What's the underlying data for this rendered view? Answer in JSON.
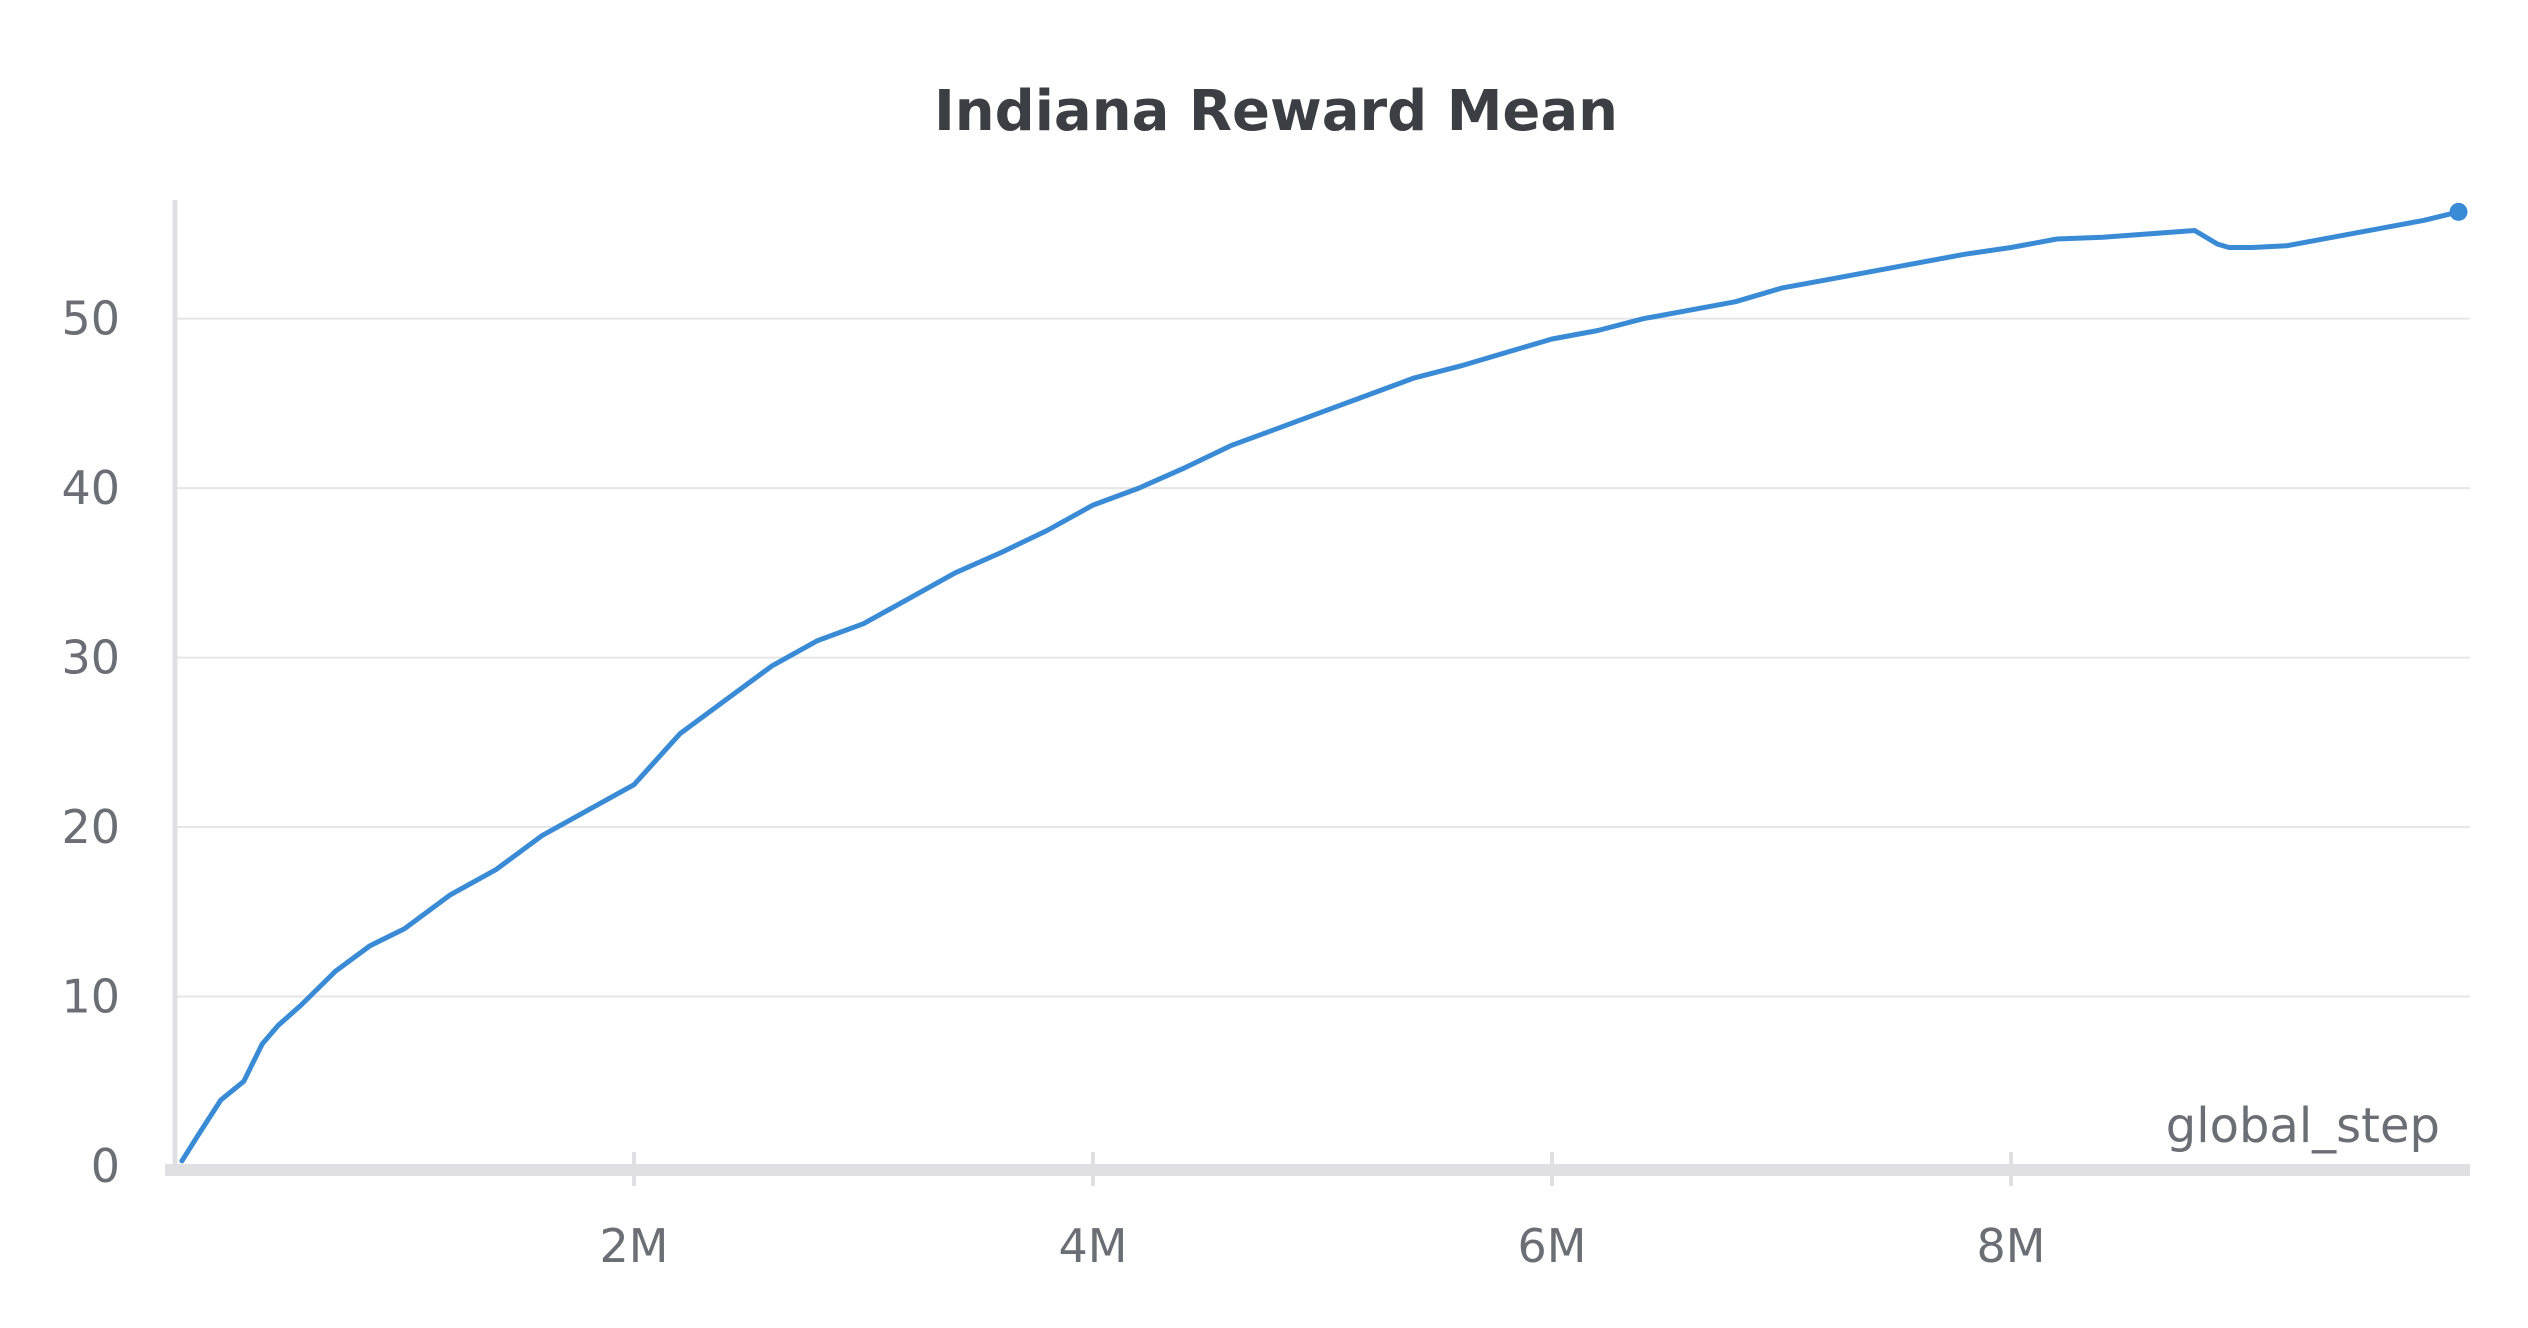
{
  "chart_data": {
    "type": "line",
    "title": "Indiana Reward Mean",
    "xlabel": "global_step",
    "ylabel": "",
    "xlim": [
      0,
      10000000
    ],
    "ylim": [
      0,
      57
    ],
    "x_ticks": [
      {
        "value": 2000000,
        "label": "2M"
      },
      {
        "value": 4000000,
        "label": "4M"
      },
      {
        "value": 6000000,
        "label": "6M"
      },
      {
        "value": 8000000,
        "label": "8M"
      }
    ],
    "y_ticks": [
      {
        "value": 0,
        "label": "0"
      },
      {
        "value": 10,
        "label": "10"
      },
      {
        "value": 20,
        "label": "20"
      },
      {
        "value": 30,
        "label": "30"
      },
      {
        "value": 40,
        "label": "40"
      },
      {
        "value": 50,
        "label": "50"
      }
    ],
    "grid": true,
    "legend": "none",
    "colors": {
      "line": "#3a8bd6",
      "grid": "#e6e6e6",
      "axis": "#e0e0e2"
    },
    "series": [
      {
        "name": "",
        "x": [
          30000,
          100000,
          200000,
          300000,
          380000,
          450000,
          550000,
          700000,
          850000,
          1000000,
          1200000,
          1400000,
          1600000,
          1800000,
          2000000,
          2200000,
          2400000,
          2600000,
          2800000,
          3000000,
          3200000,
          3400000,
          3600000,
          3800000,
          4000000,
          4200000,
          4400000,
          4600000,
          4800000,
          5000000,
          5200000,
          5400000,
          5600000,
          5800000,
          6000000,
          6200000,
          6400000,
          6600000,
          6800000,
          7000000,
          7200000,
          7400000,
          7600000,
          7800000,
          8000000,
          8200000,
          8400000,
          8600000,
          8800000,
          8900000,
          8950000,
          9050000,
          9200000,
          9400000,
          9600000,
          9800000,
          9950000
        ],
        "y": [
          0.3,
          1.8,
          3.9,
          5.0,
          7.2,
          8.3,
          9.5,
          11.5,
          13.0,
          14.0,
          16.0,
          17.5,
          19.5,
          21.0,
          22.5,
          25.5,
          27.5,
          29.5,
          31.0,
          32.0,
          33.5,
          35.0,
          36.2,
          37.5,
          39.0,
          40.0,
          41.2,
          42.5,
          43.5,
          44.5,
          45.5,
          46.5,
          47.2,
          48.0,
          48.8,
          49.3,
          50.0,
          50.5,
          51.0,
          51.8,
          52.3,
          52.8,
          53.3,
          53.8,
          54.2,
          54.7,
          54.8,
          55.0,
          55.2,
          54.4,
          54.2,
          54.2,
          54.3,
          54.8,
          55.3,
          55.8,
          56.3
        ]
      }
    ]
  }
}
